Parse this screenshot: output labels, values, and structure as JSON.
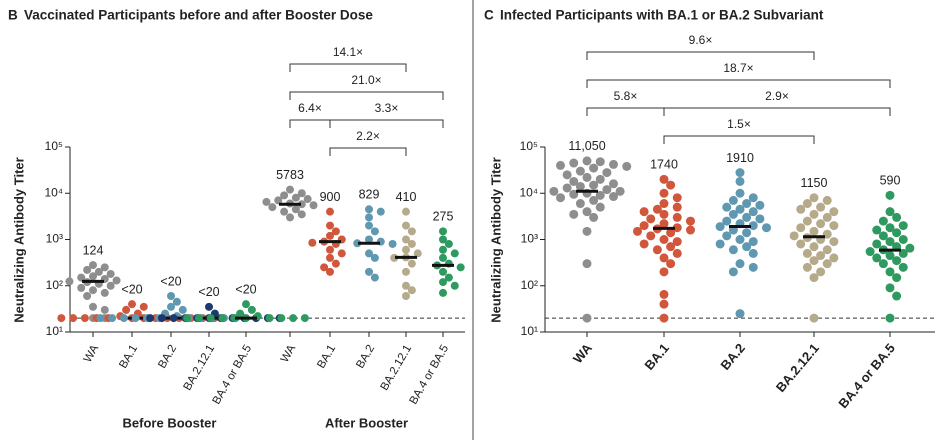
{
  "chart_data": [
    {
      "type": "dotplot",
      "panel": "B",
      "title": "Vaccinated Participants before and after Booster Dose",
      "ylabel": "Neutralizing Antibody Titer",
      "ylog": true,
      "ylim": [
        10,
        100000
      ],
      "yticks": [
        {
          "value": 10,
          "label": "10¹"
        },
        {
          "value": 100,
          "label": "10²"
        },
        {
          "value": 1000,
          "label": "10³"
        },
        {
          "value": 10000,
          "label": "10⁴"
        },
        {
          "value": 100000,
          "label": "10⁵"
        }
      ],
      "threshold": 20,
      "categories": [
        "WA",
        "BA.1",
        "BA.2",
        "BA.2.12.1",
        "BA.4 or BA.5",
        "WA",
        "BA.1",
        "BA.2",
        "BA.2.12.1",
        "BA.4 or BA.5"
      ],
      "colors": [
        "#8e8e8e",
        "#d0573c",
        "#5f98b0",
        "#1d3a70",
        "#2e9a5f",
        "#8e8e8e",
        "#d0573c",
        "#5f98b0",
        "#b5aa8a",
        "#2e9a5f"
      ],
      "medians": [
        124,
        20,
        20,
        20,
        20,
        5783,
        900,
        829,
        410,
        275
      ],
      "median_labels": [
        "124",
        "<20",
        "<20",
        "<20",
        "<20",
        "5783",
        "900",
        "829",
        "410",
        "275"
      ],
      "groups": [
        {
          "name": "Before Booster",
          "from": 0,
          "to": 4
        },
        {
          "name": "After Booster",
          "from": 5,
          "to": 9
        }
      ],
      "comparisons": [
        {
          "value": 14.1,
          "label": "14.1×",
          "from": 5,
          "to": 8
        },
        {
          "value": 21.0,
          "label": "21.0×",
          "from": 5,
          "to": 9
        },
        {
          "value": 6.4,
          "label": "6.4×",
          "from": 5,
          "to": 6
        },
        {
          "value": 3.3,
          "label": "3.3×",
          "from": 6,
          "to": 9
        },
        {
          "value": 2.2,
          "label": "2.2×",
          "from": 6,
          "to": 8
        }
      ],
      "points": [
        [
          280,
          250,
          220,
          200,
          180,
          160,
          150,
          140,
          130,
          124,
          120,
          110,
          100,
          90,
          80,
          70,
          60,
          35,
          30,
          20,
          20
        ],
        [
          40,
          35,
          30,
          25,
          22,
          20,
          20,
          20,
          20,
          20,
          20,
          20,
          20,
          20,
          20,
          20,
          20,
          20
        ],
        [
          60,
          45,
          35,
          30,
          25,
          22,
          20,
          20,
          20,
          20,
          20,
          20,
          20,
          20,
          20,
          20,
          20
        ],
        [
          35,
          25,
          20,
          20,
          20,
          20,
          20,
          20,
          20,
          20,
          20,
          20,
          20,
          20
        ],
        [
          40,
          30,
          25,
          22,
          20,
          20,
          20,
          20,
          20,
          20,
          20,
          20,
          20,
          20
        ],
        [
          12000,
          10000,
          9000,
          8000,
          7500,
          7000,
          6500,
          6000,
          5800,
          5500,
          5000,
          4500,
          4000,
          3500,
          3000
        ],
        [
          4000,
          2000,
          1500,
          1200,
          1000,
          900,
          850,
          800,
          600,
          500,
          400,
          300,
          250,
          200
        ],
        [
          4500,
          4000,
          3000,
          2000,
          1500,
          1000,
          900,
          829,
          800,
          500,
          400,
          200,
          150
        ],
        [
          4000,
          2000,
          1500,
          1000,
          800,
          600,
          500,
          410,
          400,
          300,
          200,
          100,
          80,
          60
        ],
        [
          1500,
          1000,
          800,
          600,
          500,
          400,
          300,
          275,
          250,
          200,
          150,
          120,
          100,
          70
        ]
      ]
    },
    {
      "type": "dotplot",
      "panel": "C",
      "title": "Infected Participants with BA.1 or BA.2 Subvariant",
      "ylabel": "Neutralizing Antibody Titer",
      "ylog": true,
      "ylim": [
        10,
        100000
      ],
      "yticks": [
        {
          "value": 10,
          "label": "10¹"
        },
        {
          "value": 100,
          "label": "10²"
        },
        {
          "value": 1000,
          "label": "10³"
        },
        {
          "value": 10000,
          "label": "10⁴"
        },
        {
          "value": 100000,
          "label": "10⁵"
        }
      ],
      "threshold": 20,
      "categories": [
        "WA",
        "BA.1",
        "BA.2",
        "BA.2.12.1",
        "BA.4 or BA.5"
      ],
      "colors": [
        "#8e8e8e",
        "#d0573c",
        "#5f98b0",
        "#b5aa8a",
        "#2e9a5f"
      ],
      "medians": [
        11050,
        1740,
        1910,
        1150,
        590
      ],
      "median_labels": [
        "11,050",
        "1740",
        "1910",
        "1150",
        "590"
      ],
      "comparisons": [
        {
          "value": 9.6,
          "label": "9.6×",
          "from": 0,
          "to": 3
        },
        {
          "value": 18.7,
          "label": "18.7×",
          "from": 0,
          "to": 4
        },
        {
          "value": 5.8,
          "label": "5.8×",
          "from": 0,
          "to": 1
        },
        {
          "value": 2.9,
          "label": "2.9×",
          "from": 1,
          "to": 4
        },
        {
          "value": 1.5,
          "label": "1.5×",
          "from": 1,
          "to": 3
        }
      ],
      "points": [
        [
          50000,
          48000,
          45000,
          42000,
          40000,
          38000,
          35000,
          30000,
          28000,
          25000,
          22000,
          20000,
          18000,
          16000,
          15000,
          14000,
          13000,
          12000,
          11000,
          11000,
          10000,
          9500,
          9000,
          8500,
          8000,
          7000,
          6000,
          5000,
          4000,
          3500,
          3000,
          1500,
          300,
          20
        ],
        [
          20000,
          15000,
          10000,
          8000,
          6000,
          5000,
          4500,
          4000,
          3500,
          3000,
          2800,
          2500,
          2200,
          2000,
          1800,
          1700,
          1600,
          1500,
          1400,
          1200,
          1000,
          900,
          800,
          700,
          600,
          500,
          400,
          300,
          200,
          65,
          40,
          20
        ],
        [
          28000,
          18000,
          10000,
          8000,
          7000,
          6000,
          5500,
          5000,
          4500,
          4000,
          3500,
          3000,
          2800,
          2500,
          2200,
          2000,
          1900,
          1800,
          1600,
          1400,
          1200,
          1000,
          900,
          800,
          700,
          600,
          500,
          300,
          250,
          200,
          25
        ],
        [
          8000,
          7000,
          6000,
          5000,
          4500,
          4000,
          3500,
          3000,
          2500,
          2200,
          2000,
          1800,
          1500,
          1300,
          1200,
          1100,
          1000,
          900,
          800,
          700,
          600,
          500,
          450,
          400,
          350,
          300,
          250,
          200,
          150,
          20
        ],
        [
          9000,
          4000,
          3000,
          2500,
          2000,
          1800,
          1600,
          1400,
          1200,
          1000,
          900,
          800,
          700,
          650,
          600,
          550,
          500,
          450,
          400,
          350,
          300,
          250,
          200,
          150,
          90,
          60,
          20
        ]
      ]
    }
  ]
}
